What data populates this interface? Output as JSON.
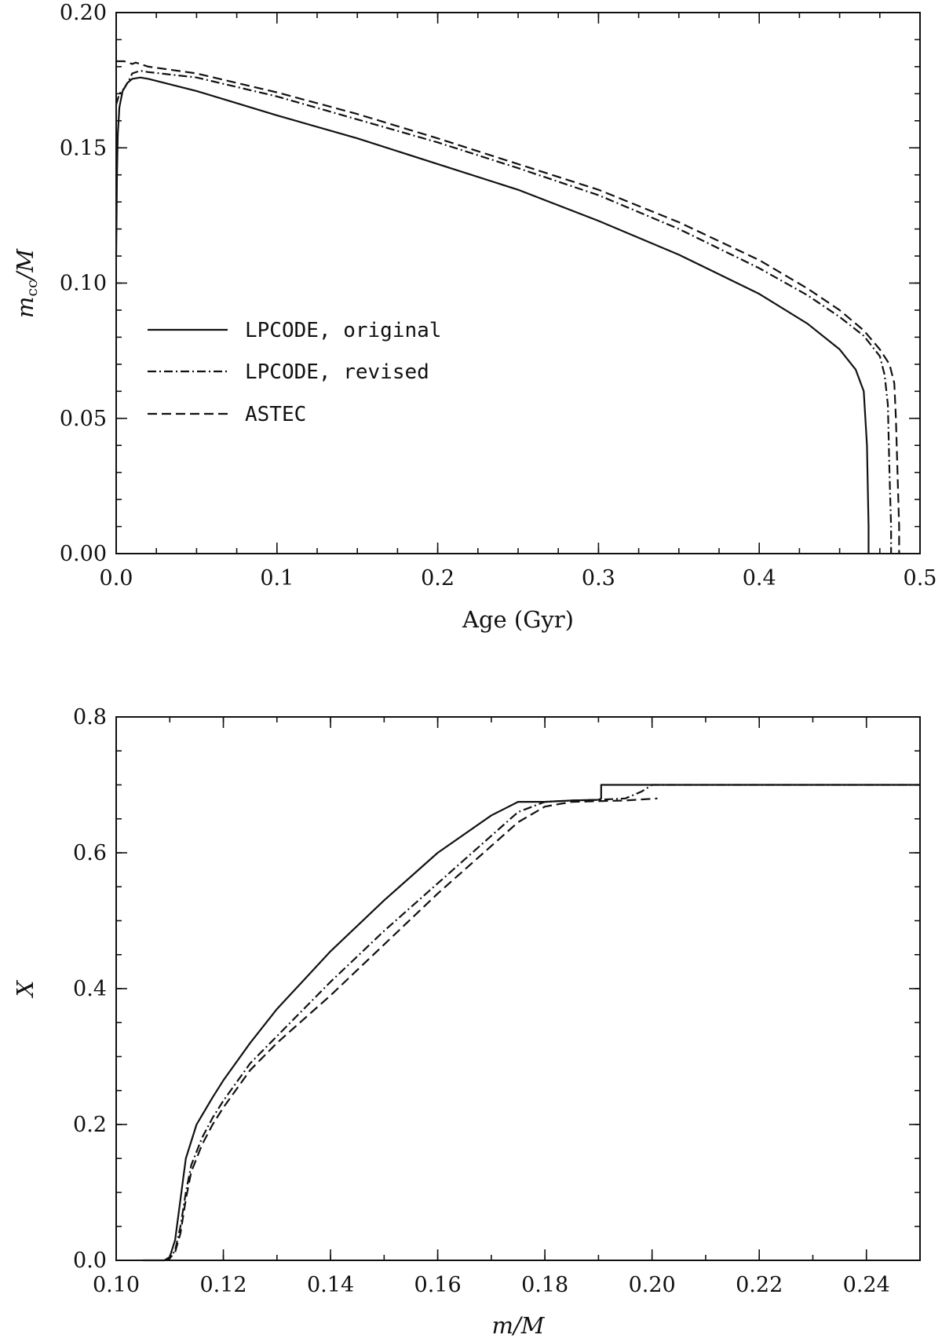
{
  "chart_data": [
    {
      "type": "line",
      "xlabel": "Age (Gyr)",
      "ylabel": "m_cc/M",
      "ylabel_main": "m",
      "ylabel_sub": "cc",
      "ylabel_rest": "/M",
      "xlim": [
        0.0,
        0.5
      ],
      "ylim": [
        0.0,
        0.2
      ],
      "xticks": [
        0.0,
        0.1,
        0.2,
        0.3,
        0.4,
        0.5
      ],
      "xtick_labels": [
        "0.0",
        "0.1",
        "0.2",
        "0.3",
        "0.4",
        "0.5"
      ],
      "yticks": [
        0.0,
        0.05,
        0.1,
        0.15,
        0.2
      ],
      "ytick_labels": [
        "0.00",
        "0.05",
        "0.10",
        "0.15",
        "0.20"
      ],
      "legend_position": "middle-left",
      "series": [
        {
          "name": "LPCODE, original",
          "style": "solid",
          "x": [
            0.0,
            0.0005,
            0.001,
            0.002,
            0.004,
            0.007,
            0.01,
            0.015,
            0.02,
            0.05,
            0.1,
            0.15,
            0.2,
            0.25,
            0.3,
            0.35,
            0.4,
            0.43,
            0.45,
            0.46,
            0.465,
            0.467,
            0.468,
            0.468
          ],
          "y": [
            0.11,
            0.14,
            0.155,
            0.165,
            0.171,
            0.174,
            0.1755,
            0.176,
            0.1755,
            0.171,
            0.162,
            0.1535,
            0.144,
            0.1345,
            0.123,
            0.1105,
            0.096,
            0.085,
            0.0755,
            0.068,
            0.06,
            0.04,
            0.01,
            0.0
          ]
        },
        {
          "name": "LPCODE, revised",
          "style": "dashdot",
          "x": [
            0.0,
            0.002,
            0.005,
            0.008,
            0.01,
            0.015,
            0.02,
            0.05,
            0.1,
            0.15,
            0.2,
            0.25,
            0.3,
            0.35,
            0.4,
            0.43,
            0.45,
            0.465,
            0.475,
            0.478,
            0.48,
            0.481,
            0.482,
            0.482
          ],
          "y": [
            0.166,
            0.17,
            0.172,
            0.175,
            0.1775,
            0.1785,
            0.178,
            0.176,
            0.169,
            0.1605,
            0.152,
            0.1425,
            0.1325,
            0.12,
            0.1055,
            0.0955,
            0.0875,
            0.0805,
            0.073,
            0.066,
            0.055,
            0.03,
            0.01,
            0.0
          ]
        },
        {
          "name": "ASTEC",
          "style": "dashed",
          "x": [
            0.0,
            0.005,
            0.01,
            0.012,
            0.015,
            0.02,
            0.05,
            0.1,
            0.15,
            0.2,
            0.25,
            0.3,
            0.35,
            0.4,
            0.43,
            0.45,
            0.465,
            0.475,
            0.481,
            0.484,
            0.485,
            0.486,
            0.487,
            0.487
          ],
          "y": [
            0.182,
            0.182,
            0.181,
            0.1815,
            0.181,
            0.18,
            0.1775,
            0.1705,
            0.1625,
            0.1535,
            0.144,
            0.1345,
            0.1225,
            0.1085,
            0.098,
            0.09,
            0.0825,
            0.0755,
            0.07,
            0.063,
            0.05,
            0.03,
            0.01,
            0.0
          ]
        }
      ]
    },
    {
      "type": "line",
      "xlabel": "m/M",
      "ylabel": "X",
      "xlim": [
        0.1,
        0.25
      ],
      "ylim": [
        0.0,
        0.8
      ],
      "xticks": [
        0.1,
        0.12,
        0.14,
        0.16,
        0.18,
        0.2,
        0.22,
        0.24
      ],
      "xtick_labels": [
        "0.10",
        "0.12",
        "0.14",
        "0.16",
        "0.18",
        "0.20",
        "0.22",
        "0.24"
      ],
      "yticks": [
        0.0,
        0.2,
        0.4,
        0.6,
        0.8
      ],
      "ytick_labels": [
        "0.0",
        "0.2",
        "0.4",
        "0.6",
        "0.8"
      ],
      "series": [
        {
          "name": "LPCODE, original",
          "style": "solid",
          "x": [
            0.105,
            0.109,
            0.11,
            0.111,
            0.112,
            0.113,
            0.115,
            0.118,
            0.12,
            0.125,
            0.13,
            0.14,
            0.15,
            0.16,
            0.17,
            0.175,
            0.18,
            0.185,
            0.19,
            0.1905,
            0.1905,
            0.192,
            0.2,
            0.21,
            0.22,
            0.23,
            0.24,
            0.25
          ],
          "y": [
            0.0,
            0.0,
            0.005,
            0.03,
            0.09,
            0.15,
            0.2,
            0.24,
            0.265,
            0.32,
            0.37,
            0.455,
            0.53,
            0.6,
            0.655,
            0.675,
            0.675,
            0.677,
            0.678,
            0.68,
            0.7,
            0.7,
            0.7,
            0.7,
            0.7,
            0.7,
            0.7,
            0.7
          ]
        },
        {
          "name": "LPCODE, revised",
          "style": "dashdot",
          "x": [
            0.109,
            0.11,
            0.111,
            0.112,
            0.113,
            0.114,
            0.116,
            0.118,
            0.12,
            0.125,
            0.13,
            0.135,
            0.14,
            0.15,
            0.16,
            0.17,
            0.175,
            0.18,
            0.185,
            0.19,
            0.195,
            0.198,
            0.2,
            0.21,
            0.22,
            0.23,
            0.24,
            0.25
          ],
          "y": [
            0.0,
            0.003,
            0.015,
            0.05,
            0.1,
            0.14,
            0.18,
            0.21,
            0.235,
            0.29,
            0.33,
            0.37,
            0.41,
            0.485,
            0.555,
            0.625,
            0.66,
            0.675,
            0.677,
            0.678,
            0.68,
            0.69,
            0.7,
            0.7,
            0.7,
            0.7,
            0.7,
            0.7
          ]
        },
        {
          "name": "ASTEC",
          "style": "dashed",
          "x": [
            0.109,
            0.11,
            0.111,
            0.112,
            0.113,
            0.114,
            0.116,
            0.118,
            0.12,
            0.125,
            0.13,
            0.135,
            0.14,
            0.15,
            0.16,
            0.17,
            0.175,
            0.18,
            0.185,
            0.19,
            0.195,
            0.201
          ],
          "y": [
            0.0,
            0.003,
            0.012,
            0.04,
            0.09,
            0.13,
            0.17,
            0.2,
            0.225,
            0.28,
            0.32,
            0.355,
            0.39,
            0.465,
            0.54,
            0.61,
            0.645,
            0.668,
            0.675,
            0.676,
            0.677,
            0.68
          ]
        }
      ]
    }
  ]
}
